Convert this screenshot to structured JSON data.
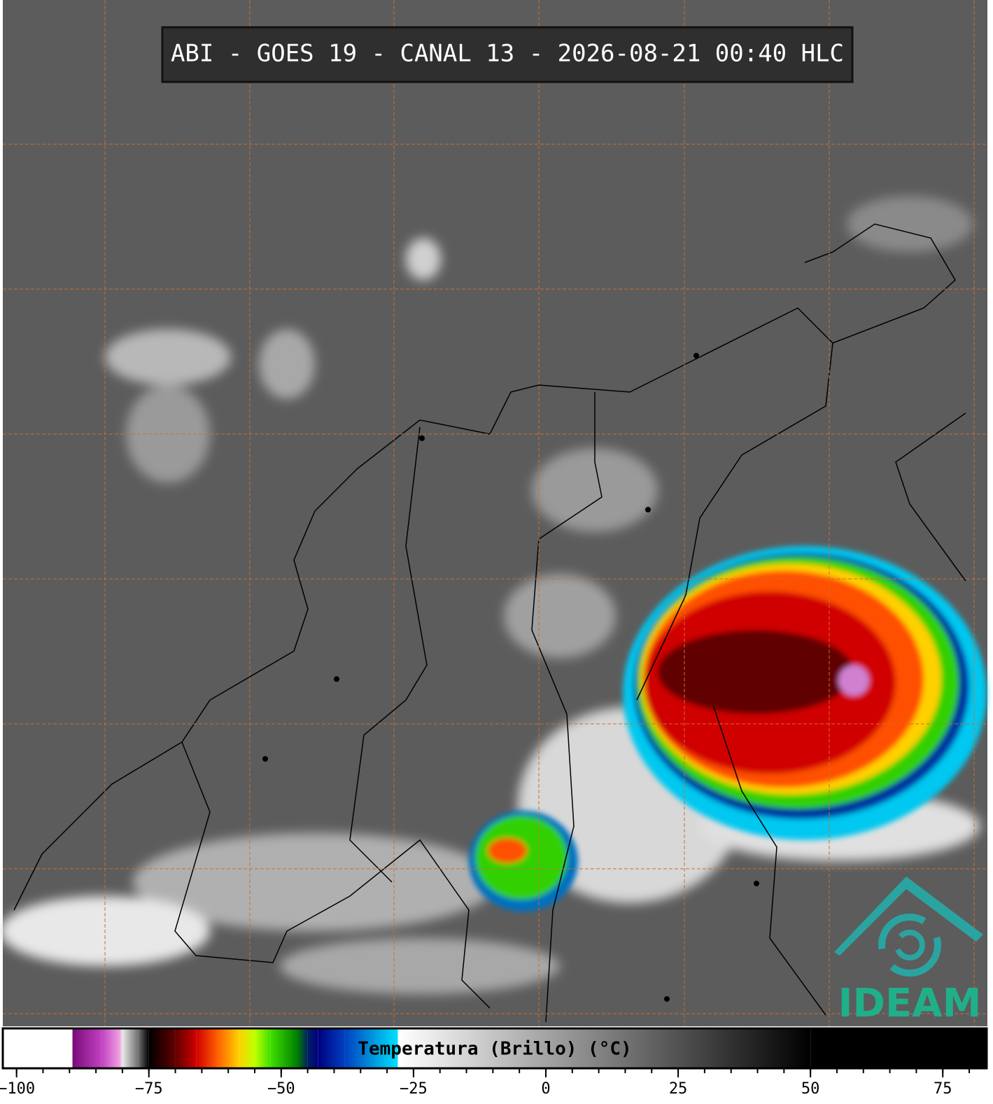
{
  "header": {
    "title": "ABI - GOES 19 - CANAL 13 - 2026-08-21 00:40 HLC"
  },
  "logo": {
    "text": "IDEAM"
  },
  "colorbar": {
    "label": "Temperatura (Brillo) (°C)",
    "xlim": [
      -102.6,
      83.3
    ],
    "xticks": [
      {
        "value": -100,
        "label": "−100"
      },
      {
        "value": -75,
        "label": "−75"
      },
      {
        "value": -50,
        "label": "−50"
      },
      {
        "value": -25,
        "label": "−25"
      },
      0,
      25,
      50,
      75
    ],
    "minor_xticks": [
      -100,
      -95,
      -90,
      -85,
      -80,
      -75,
      -70,
      -65,
      -60,
      -55,
      -50,
      -45,
      -40,
      -35,
      -30,
      -25,
      -20,
      -15,
      -10,
      -5,
      0,
      5,
      10,
      15,
      20,
      25,
      30,
      35,
      40,
      45,
      50,
      55,
      60,
      65,
      70,
      75,
      80
    ],
    "colormap": [
      {
        "value": -102.6,
        "color": "#ffffff"
      },
      {
        "value": -89.5,
        "color": "#ffffff"
      },
      {
        "value": -89.4,
        "color": "#7a0a7a"
      },
      {
        "value": -84,
        "color": "#c040c0"
      },
      {
        "value": -80.5,
        "color": "#f0a0e0"
      },
      {
        "value": -80,
        "color": "#e8e8e8"
      },
      {
        "value": -77,
        "color": "#707070"
      },
      {
        "value": -75,
        "color": "#000000"
      },
      {
        "value": -70,
        "color": "#600000"
      },
      {
        "value": -66,
        "color": "#d00000"
      },
      {
        "value": -62,
        "color": "#ff6000"
      },
      {
        "value": -58,
        "color": "#ffd000"
      },
      {
        "value": -55,
        "color": "#c0ff00"
      },
      {
        "value": -52,
        "color": "#40e000"
      },
      {
        "value": -47,
        "color": "#008000"
      },
      {
        "value": -45,
        "color": "#002060"
      },
      {
        "value": -43,
        "color": "#000080"
      },
      {
        "value": -38,
        "color": "#0040c0"
      },
      {
        "value": -32,
        "color": "#00a0e0"
      },
      {
        "value": -28,
        "color": "#00e0ff"
      },
      {
        "value": -27.9,
        "color": "#ffffff"
      },
      {
        "value": 50,
        "color": "#000000"
      },
      {
        "value": 83.3,
        "color": "#000000"
      }
    ]
  }
}
